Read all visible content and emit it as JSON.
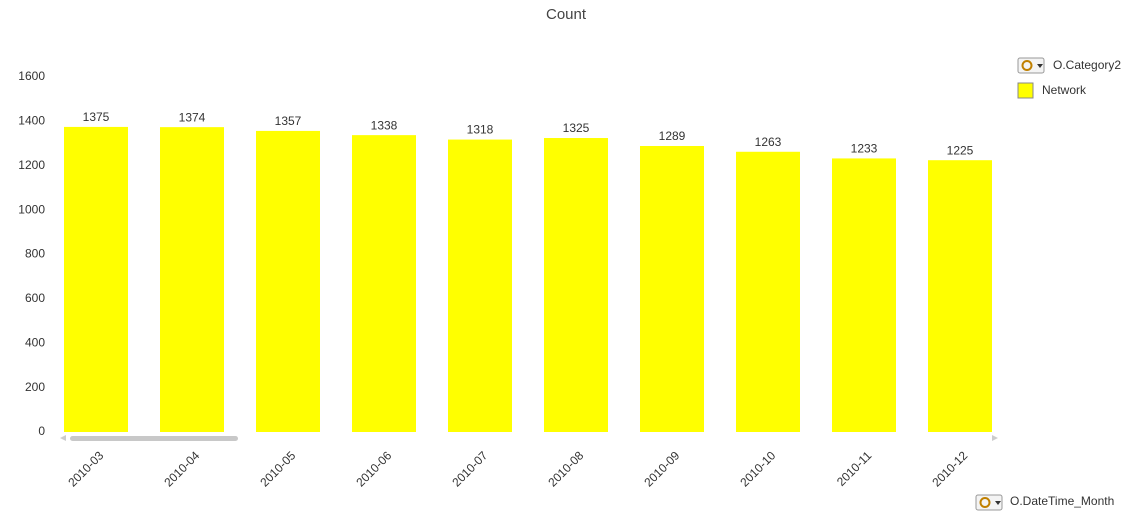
{
  "chart_data": {
    "type": "bar",
    "title": "Count",
    "x_label": "O.DateTime_Month",
    "legend_title": "O.Category2",
    "categories": [
      "2010-03",
      "2010-04",
      "2010-05",
      "2010-06",
      "2010-07",
      "2010-08",
      "2010-09",
      "2010-10",
      "2010-11",
      "2010-12"
    ],
    "series": [
      {
        "name": "Network",
        "color": "#ffff00",
        "values": [
          1375,
          1374,
          1357,
          1338,
          1318,
          1325,
          1289,
          1263,
          1233,
          1225
        ]
      }
    ],
    "ylim": [
      0,
      1600
    ],
    "yticks": [
      0,
      200,
      400,
      600,
      800,
      1000,
      1200,
      1400,
      1600
    ],
    "grid": false,
    "legend": "right"
  }
}
